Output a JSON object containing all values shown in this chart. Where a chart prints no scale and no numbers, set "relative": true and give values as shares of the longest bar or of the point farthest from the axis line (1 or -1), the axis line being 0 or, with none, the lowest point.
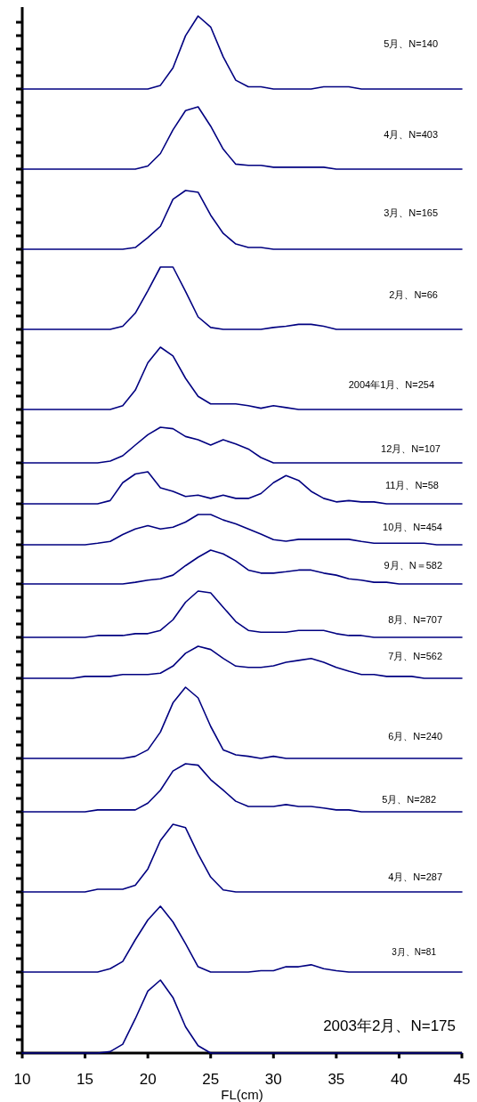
{
  "chart_data": [
    {
      "type": "line",
      "title": "5月、N=140",
      "color": "#000080",
      "relative": true,
      "xlim": [
        10,
        45
      ],
      "tick_labels": false,
      "x": [
        10,
        11,
        12,
        13,
        14,
        15,
        16,
        17,
        18,
        19,
        20,
        21,
        22,
        23,
        24,
        25,
        26,
        27,
        28,
        29,
        30,
        31,
        32,
        33,
        34,
        35,
        36,
        37,
        38,
        39,
        40,
        41,
        42,
        43,
        44,
        45
      ],
      "values": [
        0,
        0,
        0,
        0,
        0,
        0,
        0,
        0,
        0,
        0,
        0,
        0.05,
        0.29,
        0.73,
        1,
        0.85,
        0.44,
        0.12,
        0.03,
        0.03,
        0,
        0,
        0,
        0,
        0.03,
        0.03,
        0.03,
        0,
        0,
        0,
        0,
        0,
        0,
        0,
        0,
        0
      ]
    },
    {
      "type": "line",
      "title": "4月、N=403",
      "color": "#000080",
      "relative": true,
      "xlim": [
        10,
        45
      ],
      "tick_labels": false,
      "x": [
        10,
        11,
        12,
        13,
        14,
        15,
        16,
        17,
        18,
        19,
        20,
        21,
        22,
        23,
        24,
        25,
        26,
        27,
        28,
        29,
        30,
        31,
        32,
        33,
        34,
        35,
        36,
        37,
        38,
        39,
        40,
        41,
        42,
        43,
        44,
        45
      ],
      "values": [
        0,
        0,
        0,
        0,
        0,
        0,
        0,
        0,
        0,
        0,
        0.05,
        0.25,
        0.63,
        0.94,
        1,
        0.69,
        0.32,
        0.08,
        0.06,
        0.06,
        0.03,
        0.03,
        0.03,
        0.03,
        0.03,
        0,
        0,
        0,
        0,
        0,
        0,
        0,
        0,
        0,
        0,
        0
      ]
    },
    {
      "type": "line",
      "title": "3月、N=165",
      "color": "#000080",
      "relative": true,
      "xlim": [
        10,
        45
      ],
      "tick_labels": false,
      "x": [
        10,
        11,
        12,
        13,
        14,
        15,
        16,
        17,
        18,
        19,
        20,
        21,
        22,
        23,
        24,
        25,
        26,
        27,
        28,
        29,
        30,
        31,
        32,
        33,
        34,
        35,
        36,
        37,
        38,
        39,
        40,
        41,
        42,
        43,
        44,
        45
      ],
      "values": [
        0,
        0,
        0,
        0,
        0,
        0,
        0,
        0,
        0,
        0.03,
        0.2,
        0.39,
        0.85,
        1,
        0.97,
        0.58,
        0.27,
        0.09,
        0.03,
        0.03,
        0,
        0,
        0,
        0,
        0,
        0,
        0,
        0,
        0,
        0,
        0,
        0,
        0,
        0,
        0,
        0
      ]
    },
    {
      "type": "line",
      "title": "2月、N=66",
      "color": "#000080",
      "relative": true,
      "xlim": [
        10,
        45
      ],
      "tick_labels": false,
      "x": [
        10,
        11,
        12,
        13,
        14,
        15,
        16,
        17,
        18,
        19,
        20,
        21,
        22,
        23,
        24,
        25,
        26,
        27,
        28,
        29,
        30,
        31,
        32,
        33,
        34,
        35,
        36,
        37,
        38,
        39,
        40,
        41,
        42,
        43,
        44,
        45
      ],
      "values": [
        0,
        0,
        0,
        0,
        0,
        0,
        0,
        0,
        0.05,
        0.26,
        0.62,
        1,
        1,
        0.61,
        0.2,
        0.03,
        0,
        0,
        0,
        0,
        0.03,
        0.05,
        0.08,
        0.08,
        0.05,
        0,
        0,
        0,
        0,
        0,
        0,
        0,
        0,
        0,
        0,
        0
      ]
    },
    {
      "type": "line",
      "title": "2004年1月、N=254",
      "color": "#000080",
      "relative": true,
      "xlim": [
        10,
        45
      ],
      "tick_labels": false,
      "x": [
        10,
        11,
        12,
        13,
        14,
        15,
        16,
        17,
        18,
        19,
        20,
        21,
        22,
        23,
        24,
        25,
        26,
        27,
        28,
        29,
        30,
        31,
        32,
        33,
        34,
        35,
        36,
        37,
        38,
        39,
        40,
        41,
        42,
        43,
        44,
        45
      ],
      "values": [
        0,
        0,
        0,
        0,
        0,
        0,
        0,
        0,
        0.06,
        0.31,
        0.75,
        1,
        0.86,
        0.5,
        0.21,
        0.09,
        0.09,
        0.09,
        0.06,
        0.02,
        0.06,
        0.03,
        0,
        0,
        0,
        0,
        0,
        0,
        0,
        0,
        0,
        0,
        0,
        0,
        0,
        0
      ]
    },
    {
      "type": "line",
      "title": "12月、N=107",
      "color": "#000080",
      "relative": true,
      "xlim": [
        10,
        45
      ],
      "tick_labels": false,
      "x": [
        10,
        11,
        12,
        13,
        14,
        15,
        16,
        17,
        18,
        19,
        20,
        21,
        22,
        23,
        24,
        25,
        26,
        27,
        28,
        29,
        30,
        31,
        32,
        33,
        34,
        35,
        36,
        37,
        38,
        39,
        40,
        41,
        42,
        43,
        44,
        45
      ],
      "values": [
        0,
        0,
        0,
        0,
        0,
        0,
        0,
        0.05,
        0.2,
        0.5,
        0.79,
        1,
        0.96,
        0.74,
        0.65,
        0.5,
        0.65,
        0.53,
        0.39,
        0.15,
        0,
        0,
        0,
        0,
        0,
        0,
        0,
        0,
        0,
        0,
        0,
        0,
        0,
        0,
        0,
        0
      ]
    },
    {
      "type": "line",
      "title": "11月、N=58",
      "color": "#000080",
      "relative": true,
      "xlim": [
        10,
        45
      ],
      "tick_labels": false,
      "x": [
        10,
        11,
        12,
        13,
        14,
        15,
        16,
        17,
        18,
        19,
        20,
        21,
        22,
        23,
        24,
        25,
        26,
        27,
        28,
        29,
        30,
        31,
        32,
        33,
        34,
        35,
        36,
        37,
        38,
        39,
        40,
        41,
        42,
        43,
        44,
        45
      ],
      "values": [
        0,
        0,
        0,
        0,
        0,
        0,
        0,
        0.1,
        0.66,
        0.93,
        1,
        0.5,
        0.39,
        0.23,
        0.27,
        0.17,
        0.27,
        0.17,
        0.17,
        0.32,
        0.66,
        0.88,
        0.73,
        0.39,
        0.17,
        0.06,
        0.1,
        0.06,
        0.06,
        0,
        0,
        0,
        0,
        0,
        0,
        0
      ]
    },
    {
      "type": "line",
      "title": "10月、N=454",
      "color": "#000080",
      "relative": true,
      "xlim": [
        10,
        45
      ],
      "tick_labels": false,
      "x": [
        10,
        11,
        12,
        13,
        14,
        15,
        16,
        17,
        18,
        19,
        20,
        21,
        22,
        23,
        24,
        25,
        26,
        27,
        28,
        29,
        30,
        31,
        32,
        33,
        34,
        35,
        36,
        37,
        38,
        39,
        40,
        41,
        42,
        43,
        44,
        45
      ],
      "values": [
        0,
        0,
        0,
        0,
        0,
        0,
        0.05,
        0.11,
        0.34,
        0.52,
        0.63,
        0.52,
        0.58,
        0.75,
        1,
        1,
        0.82,
        0.69,
        0.52,
        0.35,
        0.17,
        0.12,
        0.18,
        0.18,
        0.18,
        0.18,
        0.18,
        0.11,
        0.05,
        0.05,
        0.05,
        0.05,
        0.05,
        0,
        0,
        0
      ]
    },
    {
      "type": "line",
      "title": "9月、N＝582",
      "color": "#000080",
      "relative": true,
      "xlim": [
        10,
        45
      ],
      "tick_labels": false,
      "x": [
        10,
        11,
        12,
        13,
        14,
        15,
        16,
        17,
        18,
        19,
        20,
        21,
        22,
        23,
        24,
        25,
        26,
        27,
        28,
        29,
        30,
        31,
        32,
        33,
        34,
        35,
        36,
        37,
        38,
        39,
        40,
        41,
        42,
        43,
        44,
        45
      ],
      "values": [
        0,
        0,
        0,
        0,
        0,
        0,
        0,
        0,
        0,
        0.05,
        0.11,
        0.15,
        0.26,
        0.54,
        0.79,
        1,
        0.89,
        0.68,
        0.41,
        0.32,
        0.32,
        0.36,
        0.41,
        0.41,
        0.32,
        0.26,
        0.15,
        0.11,
        0.05,
        0.05,
        0,
        0,
        0,
        0,
        0,
        0
      ]
    },
    {
      "type": "line",
      "title": "8月、N=707",
      "color": "#000080",
      "relative": true,
      "xlim": [
        10,
        45
      ],
      "tick_labels": false,
      "x": [
        10,
        11,
        12,
        13,
        14,
        15,
        16,
        17,
        18,
        19,
        20,
        21,
        22,
        23,
        24,
        25,
        26,
        27,
        28,
        29,
        30,
        31,
        32,
        33,
        34,
        35,
        36,
        37,
        38,
        39,
        40,
        41,
        42,
        43,
        44,
        45
      ],
      "values": [
        0,
        0,
        0,
        0,
        0,
        0,
        0.04,
        0.04,
        0.04,
        0.08,
        0.08,
        0.15,
        0.38,
        0.76,
        1,
        0.96,
        0.65,
        0.34,
        0.15,
        0.11,
        0.11,
        0.11,
        0.15,
        0.15,
        0.15,
        0.08,
        0.04,
        0.04,
        0,
        0,
        0,
        0,
        0,
        0,
        0,
        0
      ]
    },
    {
      "type": "line",
      "title": "7月、N=562",
      "color": "#000080",
      "relative": true,
      "xlim": [
        10,
        45
      ],
      "tick_labels": false,
      "x": [
        10,
        11,
        12,
        13,
        14,
        15,
        16,
        17,
        18,
        19,
        20,
        21,
        22,
        23,
        24,
        25,
        26,
        27,
        28,
        29,
        30,
        31,
        32,
        33,
        34,
        35,
        36,
        37,
        38,
        39,
        40,
        41,
        42,
        43,
        44,
        45
      ],
      "values": [
        0,
        0,
        0,
        0,
        0,
        0.06,
        0.06,
        0.06,
        0.12,
        0.12,
        0.12,
        0.16,
        0.38,
        0.78,
        1,
        0.9,
        0.62,
        0.38,
        0.34,
        0.34,
        0.39,
        0.5,
        0.56,
        0.62,
        0.5,
        0.34,
        0.22,
        0.12,
        0.12,
        0.06,
        0.06,
        0.06,
        0,
        0,
        0,
        0
      ]
    },
    {
      "type": "line",
      "title": "6月、N=240",
      "color": "#000080",
      "relative": true,
      "xlim": [
        10,
        45
      ],
      "tick_labels": false,
      "x": [
        10,
        11,
        12,
        13,
        14,
        15,
        16,
        17,
        18,
        19,
        20,
        21,
        22,
        23,
        24,
        25,
        26,
        27,
        28,
        29,
        30,
        31,
        32,
        33,
        34,
        35,
        36,
        37,
        38,
        39,
        40,
        41,
        42,
        43,
        44,
        45
      ],
      "values": [
        0,
        0,
        0,
        0,
        0,
        0,
        0,
        0,
        0,
        0.03,
        0.12,
        0.37,
        0.78,
        1,
        0.85,
        0.45,
        0.12,
        0.05,
        0.03,
        0,
        0.03,
        0,
        0,
        0,
        0,
        0,
        0,
        0,
        0,
        0,
        0,
        0,
        0,
        0,
        0,
        0
      ]
    },
    {
      "type": "line",
      "title": "5月、N=282",
      "color": "#000080",
      "relative": true,
      "xlim": [
        10,
        45
      ],
      "tick_labels": false,
      "x": [
        10,
        11,
        12,
        13,
        14,
        15,
        16,
        17,
        18,
        19,
        20,
        21,
        22,
        23,
        24,
        25,
        26,
        27,
        28,
        29,
        30,
        31,
        32,
        33,
        34,
        35,
        36,
        37,
        38,
        39,
        40,
        41,
        42,
        43,
        44,
        45
      ],
      "values": [
        0,
        0,
        0,
        0,
        0,
        0,
        0.04,
        0.04,
        0.04,
        0.04,
        0.18,
        0.45,
        0.85,
        1,
        0.97,
        0.67,
        0.45,
        0.22,
        0.11,
        0.11,
        0.11,
        0.15,
        0.11,
        0.11,
        0.08,
        0.04,
        0.04,
        0,
        0,
        0,
        0,
        0,
        0,
        0,
        0,
        0
      ]
    },
    {
      "type": "line",
      "title": "4月、N=287",
      "color": "#000080",
      "relative": true,
      "xlim": [
        10,
        45
      ],
      "tick_labels": false,
      "x": [
        10,
        11,
        12,
        13,
        14,
        15,
        16,
        17,
        18,
        19,
        20,
        21,
        22,
        23,
        24,
        25,
        26,
        27,
        28,
        29,
        30,
        31,
        32,
        33,
        34,
        35,
        36,
        37,
        38,
        39,
        40,
        41,
        42,
        43,
        44,
        45
      ],
      "values": [
        0,
        0,
        0,
        0,
        0,
        0,
        0.04,
        0.04,
        0.04,
        0.1,
        0.34,
        0.76,
        1,
        0.95,
        0.56,
        0.22,
        0.03,
        0,
        0,
        0,
        0,
        0,
        0,
        0,
        0,
        0,
        0,
        0,
        0,
        0,
        0,
        0,
        0,
        0,
        0,
        0
      ]
    },
    {
      "type": "line",
      "title": "3月、N=81",
      "color": "#000080",
      "relative": true,
      "xlim": [
        10,
        45
      ],
      "tick_labels": false,
      "x": [
        10,
        11,
        12,
        13,
        14,
        15,
        16,
        17,
        18,
        19,
        20,
        21,
        22,
        23,
        24,
        25,
        26,
        27,
        28,
        29,
        30,
        31,
        32,
        33,
        34,
        35,
        36,
        37,
        38,
        39,
        40,
        41,
        42,
        43,
        44,
        45
      ],
      "values": [
        0,
        0,
        0,
        0,
        0,
        0,
        0,
        0.05,
        0.16,
        0.49,
        0.79,
        1,
        0.76,
        0.43,
        0.08,
        0,
        0,
        0,
        0,
        0.02,
        0.02,
        0.08,
        0.08,
        0.11,
        0.05,
        0.02,
        0,
        0,
        0,
        0,
        0,
        0,
        0,
        0,
        0,
        0
      ]
    },
    {
      "type": "line",
      "title": "2003年2月、N=175",
      "color": "#000080",
      "relative": true,
      "xlim": [
        10,
        45
      ],
      "xticks": [
        10,
        15,
        20,
        25,
        30,
        35,
        40,
        45
      ],
      "xlabel": "FL(cm)",
      "tick_labels": "x",
      "x": [
        10,
        11,
        12,
        13,
        14,
        15,
        16,
        17,
        18,
        19,
        20,
        21,
        22,
        23,
        24,
        25,
        26,
        27,
        28,
        29,
        30,
        31,
        32,
        33,
        34,
        35,
        36,
        37,
        38,
        39,
        40,
        41,
        42,
        43,
        44,
        45
      ],
      "values": [
        0,
        0,
        0,
        0,
        0,
        0,
        0,
        0.02,
        0.12,
        0.47,
        0.85,
        1,
        0.76,
        0.36,
        0.1,
        0,
        0,
        0,
        0,
        0,
        0,
        0,
        0,
        0,
        0,
        0,
        0,
        0,
        0,
        0,
        0,
        0,
        0,
        0,
        0,
        0
      ]
    }
  ]
}
